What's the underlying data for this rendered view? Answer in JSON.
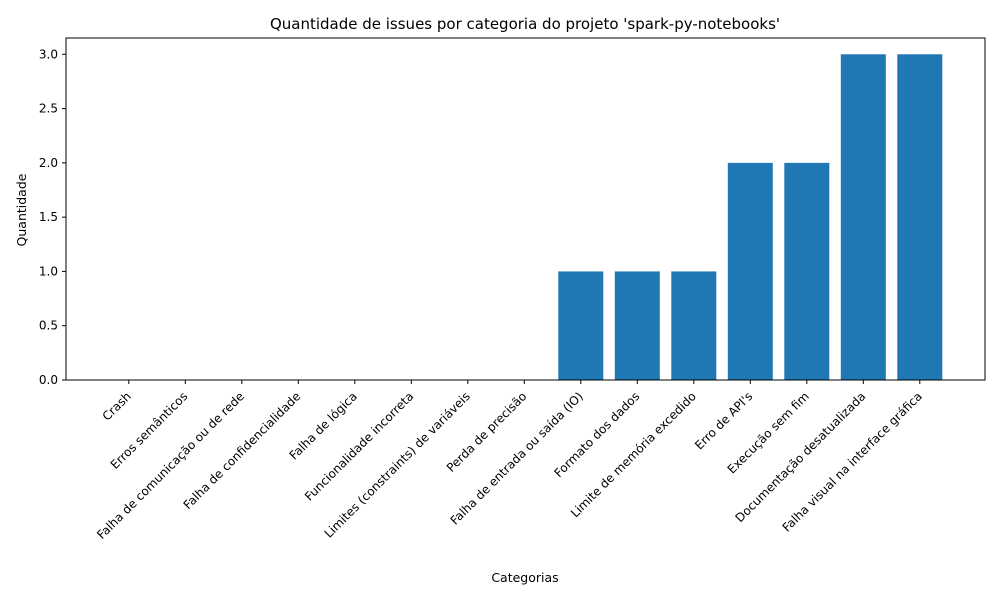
{
  "chart_data": {
    "type": "bar",
    "title": "Quantidade de issues por categoria do projeto 'spark-py-notebooks'",
    "xlabel": "Categorias",
    "ylabel": "Quantidade",
    "categories": [
      "Crash",
      "Erros semânticos",
      "Falha de comunicação ou de rede",
      "Falha de confidencialidade",
      "Falha de lógica",
      "Funcionalidade incorreta",
      "Limites (constraints) de variáveis",
      "Perda de precisão",
      "Falha de entrada ou saída (IO)",
      "Formato dos dados",
      "Limite de memória excedido",
      "Erro de API's",
      "Execução sem fim",
      "Documentação desatualizada",
      "Falha visual na interface gráfica"
    ],
    "values": [
      0,
      0,
      0,
      0,
      0,
      0,
      0,
      0,
      1,
      1,
      1,
      2,
      2,
      3,
      3
    ],
    "ylim": [
      0,
      3.15
    ],
    "yticks": [
      "0.0",
      "0.5",
      "1.0",
      "1.5",
      "2.0",
      "2.5",
      "3.0"
    ],
    "bar_color": "#1f77b4",
    "grid": false
  }
}
